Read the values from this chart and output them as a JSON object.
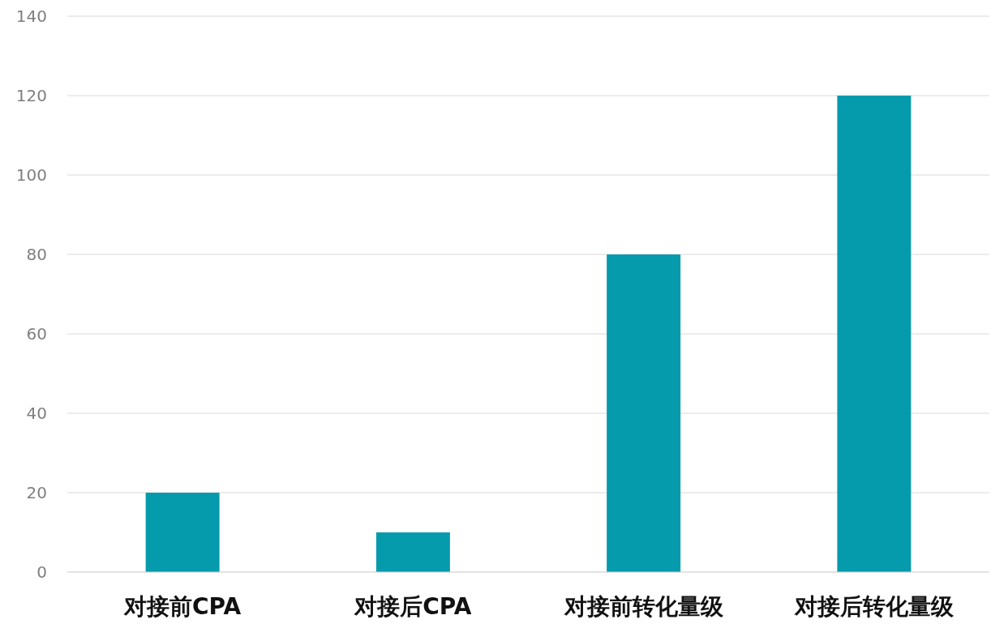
{
  "chart_data": {
    "type": "bar",
    "categories": [
      "对接前CPA",
      "对接后CPA",
      "对接前转化量级",
      "对接后转化量级"
    ],
    "values": [
      20,
      10,
      80,
      120
    ],
    "color": "#069aad",
    "ylim": [
      0,
      140
    ],
    "yticks": [
      0,
      20,
      40,
      60,
      80,
      100,
      120,
      140
    ],
    "grid": "y"
  }
}
